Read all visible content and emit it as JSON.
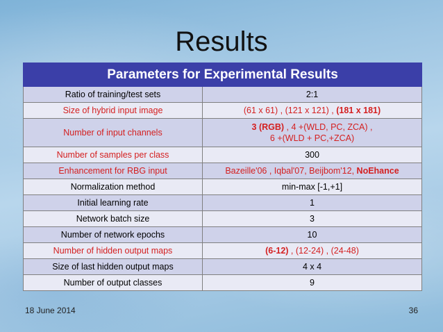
{
  "slide": {
    "title": "Results",
    "footer_date": "18 June 2014",
    "page_number": "36"
  },
  "table": {
    "header": "Parameters for Experimental Results",
    "rows": [
      {
        "label": "Ratio of training/test sets",
        "value": "2:1"
      },
      {
        "label": "Size of hybrid input image",
        "v1": "(61 x 61) , (121 x 121) , ",
        "v2": "(181 x 181)"
      },
      {
        "label": "Number of input channels",
        "l1a": "3 (RGB)",
        "l1b": " , 4 +(WLD, PC, ZCA) ,",
        "l2": "6 +(WLD + PC,+ZCA)"
      },
      {
        "label": "Number of samples per class",
        "value": "300"
      },
      {
        "label": "Enhancement for RBG input",
        "v1": "Bazeille'06 , Iqbal'07, Beijbom'12, ",
        "v2": "NoEhance"
      },
      {
        "label": "Normalization method",
        "value": "min-max [-1,+1]"
      },
      {
        "label": "Initial learning rate",
        "value": "1"
      },
      {
        "label": "Network batch size",
        "value": "3"
      },
      {
        "label": "Number of network epochs",
        "value": "10"
      },
      {
        "label": "Number of hidden output maps",
        "v1": "(6-12)",
        "v2": " , (12-24) , (24-48)"
      },
      {
        "label": "Size of last hidden output maps",
        "value": "4 x 4"
      },
      {
        "label": "Number of output classes",
        "value": "9"
      }
    ]
  }
}
